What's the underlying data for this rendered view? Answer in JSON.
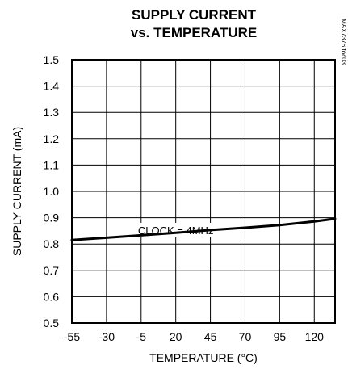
{
  "chart_data": {
    "type": "line",
    "title_lines": [
      "SUPPLY CURRENT",
      "vs. TEMPERATURE"
    ],
    "xlabel": "TEMPERATURE (°C)",
    "ylabel": "SUPPLY CURRENT (mA)",
    "xlim": [
      -55,
      135
    ],
    "ylim": [
      0.5,
      1.5
    ],
    "x_ticks": [
      -55,
      -30,
      -5,
      20,
      45,
      70,
      95,
      120
    ],
    "x_tick_labels": [
      "-55",
      "-30",
      "-5",
      "20",
      "45",
      "70",
      "95",
      "120"
    ],
    "y_ticks": [
      0.5,
      0.6,
      0.7,
      0.8,
      0.9,
      1.0,
      1.1,
      1.2,
      1.3,
      1.4,
      1.5
    ],
    "y_tick_labels": [
      "0.5",
      "0.6",
      "0.7",
      "0.8",
      "0.9",
      "1.0",
      "1.1",
      "1.2",
      "1.3",
      "1.4",
      "1.5"
    ],
    "grid": true,
    "series": [
      {
        "x": [
          -55,
          -30,
          -5,
          20,
          45,
          70,
          95,
          120,
          135
        ],
        "y": [
          0.815,
          0.824,
          0.833,
          0.843,
          0.853,
          0.862,
          0.872,
          0.886,
          0.896
        ]
      }
    ],
    "annotation": {
      "text": "CLOCK = 4MHz",
      "x": 20,
      "y": 0.853
    },
    "code_label": "MAX7376 toc03"
  }
}
